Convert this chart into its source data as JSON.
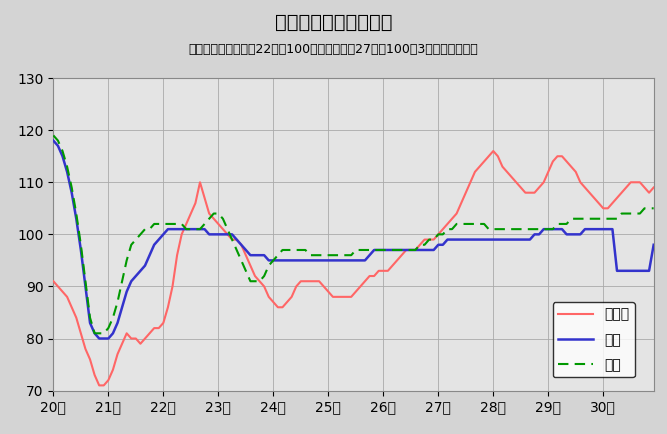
{
  "title": "鉱工業生産指数の推移",
  "subtitle": "（季節調整済、平成22年＝100、全国は平成27年＝100、3ヶ月移動平均）",
  "ylim": [
    70,
    130
  ],
  "yticks": [
    70,
    80,
    90,
    100,
    110,
    120,
    130
  ],
  "xlabel_years": [
    "20年",
    "21年",
    "22年",
    "23年",
    "24年",
    "25年",
    "26年",
    "27年",
    "28年",
    "29年",
    "30年"
  ],
  "background_color": "#d4d4d4",
  "plot_bg_color": "#e4e4e4",
  "tottori_color": "#ff6666",
  "chugoku_color": "#3333cc",
  "zenkoku_color": "#009900",
  "tottori_label": "鳥取県",
  "chugoku_label": "中国",
  "zenkoku_label": "全国",
  "n_points": 132,
  "tottori": [
    91,
    90,
    89,
    88,
    86,
    84,
    81,
    78,
    76,
    73,
    71,
    71,
    72,
    74,
    77,
    79,
    81,
    80,
    80,
    79,
    80,
    81,
    82,
    82,
    83,
    86,
    90,
    96,
    100,
    102,
    104,
    106,
    110,
    107,
    104,
    103,
    102,
    101,
    100,
    99,
    99,
    98,
    96,
    94,
    92,
    91,
    90,
    88,
    87,
    86,
    86,
    87,
    88,
    90,
    91,
    91,
    91,
    91,
    91,
    90,
    89,
    88,
    88,
    88,
    88,
    88,
    89,
    90,
    91,
    92,
    92,
    93,
    93,
    93,
    94,
    95,
    96,
    97,
    97,
    97,
    98,
    99,
    99,
    99,
    100,
    101,
    102,
    103,
    104,
    106,
    108,
    110,
    112,
    113,
    114,
    115,
    116,
    115,
    113,
    112,
    111,
    110,
    109,
    108,
    108,
    108,
    109,
    110,
    112,
    114,
    115,
    115,
    114,
    113,
    112,
    110,
    109,
    108,
    107,
    106,
    105,
    105,
    106,
    107,
    108,
    109,
    110,
    110,
    110,
    109,
    108,
    109
  ],
  "chugoku": [
    118,
    117,
    115,
    112,
    108,
    103,
    97,
    90,
    83,
    81,
    80,
    80,
    80,
    81,
    83,
    86,
    89,
    91,
    92,
    93,
    94,
    96,
    98,
    99,
    100,
    101,
    101,
    101,
    101,
    101,
    101,
    101,
    101,
    101,
    100,
    100,
    100,
    100,
    100,
    100,
    99,
    98,
    97,
    96,
    96,
    96,
    96,
    95,
    95,
    95,
    95,
    95,
    95,
    95,
    95,
    95,
    95,
    95,
    95,
    95,
    95,
    95,
    95,
    95,
    95,
    95,
    95,
    95,
    95,
    96,
    97,
    97,
    97,
    97,
    97,
    97,
    97,
    97,
    97,
    97,
    97,
    97,
    97,
    97,
    98,
    98,
    99,
    99,
    99,
    99,
    99,
    99,
    99,
    99,
    99,
    99,
    99,
    99,
    99,
    99,
    99,
    99,
    99,
    99,
    99,
    100,
    100,
    101,
    101,
    101,
    101,
    101,
    100,
    100,
    100,
    100,
    101,
    101,
    101,
    101,
    101,
    101,
    101,
    93,
    93,
    93,
    93,
    93,
    93,
    93,
    93,
    98
  ],
  "zenkoku": [
    119,
    118,
    116,
    113,
    109,
    104,
    98,
    91,
    84,
    81,
    81,
    81,
    82,
    84,
    87,
    91,
    95,
    98,
    99,
    100,
    101,
    101,
    102,
    102,
    102,
    102,
    102,
    102,
    102,
    101,
    101,
    101,
    101,
    102,
    103,
    104,
    104,
    103,
    101,
    99,
    97,
    95,
    93,
    91,
    91,
    91,
    92,
    94,
    95,
    96,
    97,
    97,
    97,
    97,
    97,
    97,
    96,
    96,
    96,
    96,
    96,
    96,
    96,
    96,
    96,
    96,
    97,
    97,
    97,
    97,
    97,
    97,
    97,
    97,
    97,
    97,
    97,
    97,
    97,
    97,
    98,
    98,
    99,
    99,
    100,
    100,
    101,
    101,
    102,
    102,
    102,
    102,
    102,
    102,
    102,
    101,
    101,
    101,
    101,
    101,
    101,
    101,
    101,
    101,
    101,
    101,
    101,
    101,
    101,
    101,
    102,
    102,
    102,
    103,
    103,
    103,
    103,
    103,
    103,
    103,
    103,
    103,
    103,
    103,
    104,
    104,
    104,
    104,
    104,
    105,
    105,
    105
  ]
}
